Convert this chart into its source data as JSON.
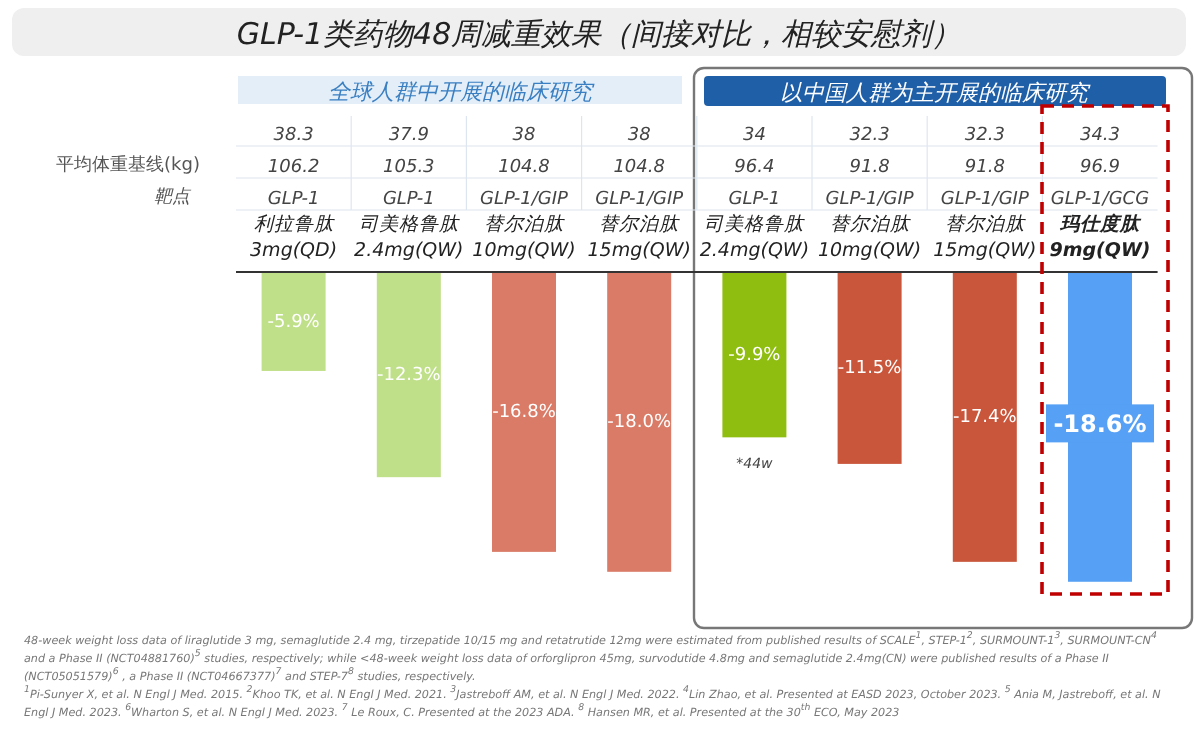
{
  "chart_data": {
    "type": "bar",
    "title": "GLP-1类药物48周减重效果（间接对比，相较安慰剂）",
    "categories": [
      "利拉鲁肽 3mg(QD)",
      "司美格鲁肽 2.4mg(QW)",
      "替尔泊肽 10mg(QW)",
      "替尔泊肽 15mg(QW)",
      "司美格鲁肽 2.4mg(QW)",
      "替尔泊肽 10mg(QW)",
      "替尔泊肽 15mg(QW)",
      "玛仕度肽 9mg(QW)"
    ],
    "values": [
      -5.9,
      -12.3,
      -16.8,
      -18.0,
      -9.9,
      -11.5,
      -17.4,
      -18.6
    ],
    "colors": [
      "#bfdf88",
      "#bfdf88",
      "#d97b67",
      "#d97b67",
      "#8fbd10",
      "#c9563b",
      "#c9563b",
      "#56a0f5"
    ],
    "value_labels": [
      "-5.9%",
      "-12.3%",
      "-16.8%",
      "-18.0%",
      "-9.9%",
      "-11.5%",
      "-17.4%",
      "-18.6%"
    ],
    "annotations": [
      "全球人群中开展的临床研究",
      "以中国人群为主开展的临床研究",
      "平均体重基线(kg)",
      "靶点",
      "38.3",
      "37.9",
      "38",
      "38",
      "34",
      "32.3",
      "32.3",
      "34.3",
      "106.2",
      "105.3",
      "104.8",
      "104.8",
      "96.4",
      "91.8",
      "91.8",
      "96.9",
      "GLP-1",
      "GLP-1",
      "GLP-1/GIP",
      "GLP-1/GIP",
      "GLP-1",
      "GLP-1/GIP",
      "GLP-1/GIP",
      "GLP-1/GCG",
      "*44w",
      "48-week weight loss data of liraglutide 3 mg, semaglutide 2.4 mg, tirzepatide 10/15  mg and retatrutide 12mg were estimated from published results of SCALE$^{1}$, STEP-1$^{2}$, SURMOUNT-1$^{3}$, SURMOUNT-CN$^{4}$ and  a Phase II (NCT04881760)$^{5}$ studies, respectively; while  <48-week weight loss data of orforglipron 45mg, survodutide 4.8mg and semaglutide 2.4mg(CN) were published results of a Phase II (NCT05051579)$^{6}$ , a Phase II (NCT04667377)$^{7}$ and STEP-7$^{8}$ studies, respectively.",
      "$^{1}$Pi-Sunyer X, et al. N Engl J Med. 2015. $^{2}$Khoo TK, et al. N Engl J Med. 2021. $^{3}$Jastreboff AM, et al. N Engl J Med. 2022. $^{4}$Lin Zhao, et al. Presented at EASD 2023, October 2023. $^{5}$ Ania M, Jastreboff, et al. N Engl J Med. 2023. $^{6}$Wharton S, et al. N Engl J Med. 2023. $^{7}$ Le Roux, C. Presented at the 2023 ADA. $^{8}$ Hansen MR, et al. Presented at the 30$^{th}$ ECO, May 2023"
    ]
  }
}
